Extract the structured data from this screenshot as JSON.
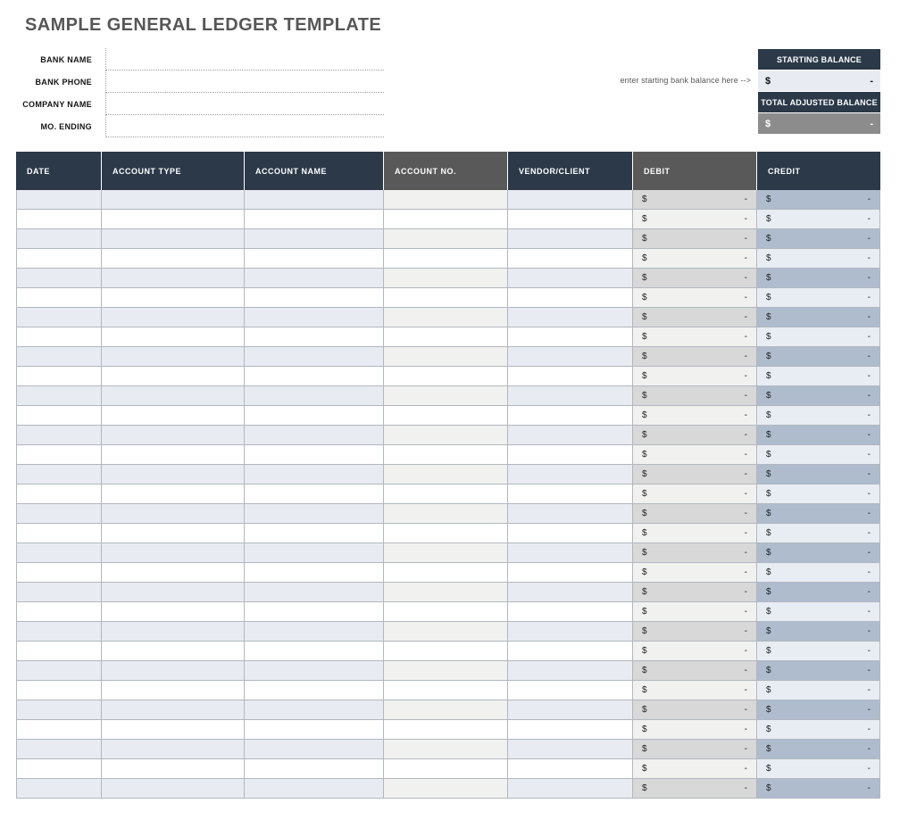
{
  "title": "SAMPLE GENERAL LEDGER TEMPLATE",
  "info_form": {
    "fields": [
      {
        "label": "BANK NAME",
        "value": ""
      },
      {
        "label": "BANK PHONE",
        "value": ""
      },
      {
        "label": "COMPANY NAME",
        "value": ""
      },
      {
        "label": "MO. ENDING",
        "value": ""
      }
    ]
  },
  "balance_panel": {
    "hint": "enter starting bank balance here -->",
    "sections": [
      {
        "header": "STARTING BALANCE",
        "currency": "$",
        "amount": "-"
      },
      {
        "header": "TOTAL ADJUSTED BALANCE",
        "currency": "$",
        "amount": "-"
      }
    ]
  },
  "ledger_table": {
    "columns": [
      {
        "key": "date",
        "label": "DATE",
        "variant": "navy",
        "type": "text"
      },
      {
        "key": "account-type",
        "label": "ACCOUNT TYPE",
        "variant": "navy",
        "type": "text"
      },
      {
        "key": "account-name",
        "label": "ACCOUNT NAME",
        "variant": "navy",
        "type": "text"
      },
      {
        "key": "account-no",
        "label": "ACCOUNT NO.",
        "variant": "gray",
        "type": "text"
      },
      {
        "key": "vendor-client",
        "label": "VENDOR/CLIENT",
        "variant": "navy",
        "type": "text"
      },
      {
        "key": "debit",
        "label": "DEBIT",
        "variant": "gray",
        "type": "money"
      },
      {
        "key": "credit",
        "label": "CREDIT",
        "variant": "navy",
        "type": "money"
      }
    ],
    "row_count": 31,
    "empty_cell_value": "",
    "money_cell": {
      "currency": "$",
      "amount": "-"
    }
  },
  "colors": {
    "navy": "#2b3949",
    "header_gray": "#595959",
    "row_shade_blue": "#e8ebf1",
    "row_shade_neutral": "#f1f1ef",
    "debit_shade": "#d8d8d8",
    "debit_light": "#f1f1f0",
    "credit_shade": "#aebcce",
    "credit_light": "#e8edf3",
    "balance_value_bg": "#e8ecf2",
    "adjusted_value_bg": "#8c8c8c",
    "title_color": "#575757"
  }
}
